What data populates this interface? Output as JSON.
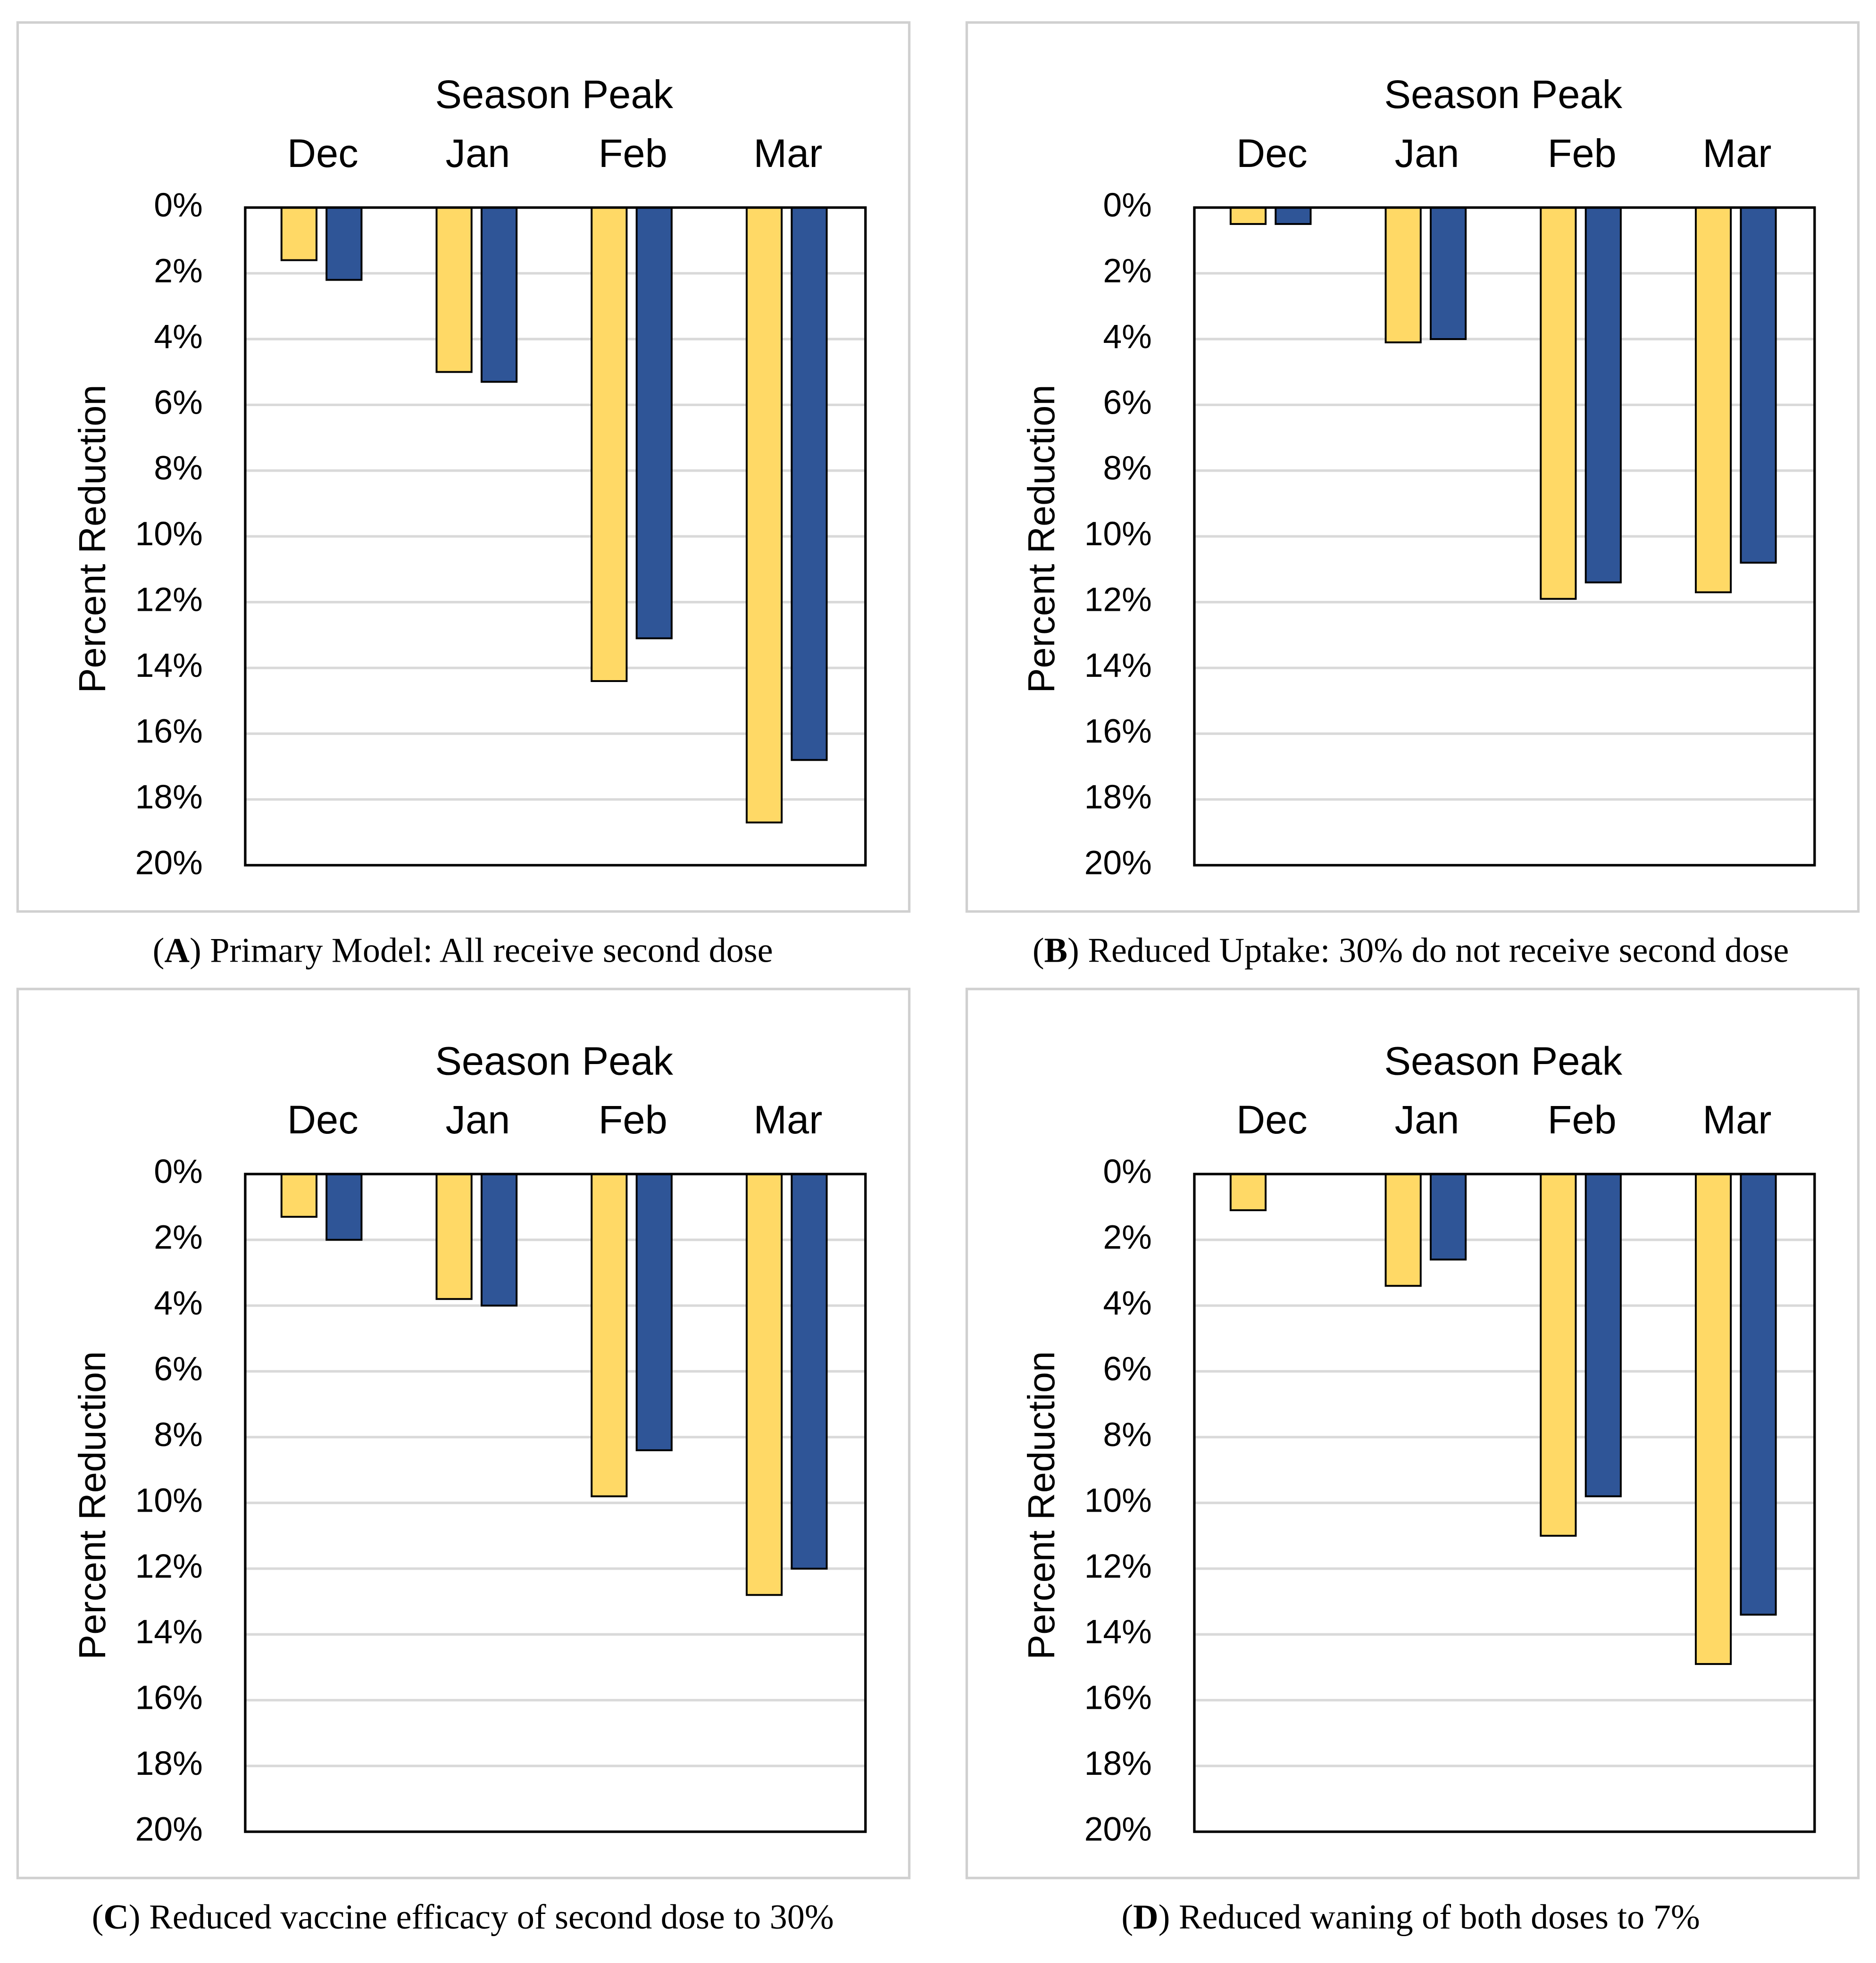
{
  "chart_data": [
    {
      "type": "bar",
      "title": "Season Peak",
      "y_label": "Percent Reduction",
      "caption": [
        "(",
        "A",
        ") Primary Model: All receive second dose"
      ],
      "categories": [
        "Dec",
        "Jan",
        "Feb",
        "Mar"
      ],
      "series": [
        {
          "color": "#ffd966",
          "values": [
            1.6,
            5.0,
            14.4,
            18.7
          ]
        },
        {
          "color": "#2f5597",
          "values": [
            2.2,
            5.3,
            13.1,
            16.8
          ]
        }
      ],
      "ylim": [
        0,
        20
      ],
      "y_inverted": true,
      "grid": true,
      "yticks": [
        {
          "value": 0,
          "label": "0%"
        },
        {
          "value": 2,
          "label": "2%"
        },
        {
          "value": 4,
          "label": "4%"
        },
        {
          "value": 6,
          "label": "6%"
        },
        {
          "value": 8,
          "label": "8%"
        },
        {
          "value": 10,
          "label": "10%"
        },
        {
          "value": 12,
          "label": "12%"
        },
        {
          "value": 14,
          "label": "14%"
        },
        {
          "value": 16,
          "label": "16%"
        },
        {
          "value": 18,
          "label": "18%"
        },
        {
          "value": 20,
          "label": "20%"
        }
      ]
    },
    {
      "type": "bar",
      "title": "Season Peak",
      "y_label": "Percent Reduction",
      "caption": [
        "(",
        "B",
        ") Reduced Uptake: 30% do not receive second dose"
      ],
      "categories": [
        "Dec",
        "Jan",
        "Feb",
        "Mar"
      ],
      "series": [
        {
          "color": "#ffd966",
          "values": [
            0.5,
            4.1,
            11.9,
            11.7
          ]
        },
        {
          "color": "#2f5597",
          "values": [
            0.5,
            4.0,
            11.4,
            10.8
          ]
        }
      ],
      "ylim": [
        0,
        20
      ],
      "y_inverted": true,
      "grid": true,
      "yticks": [
        {
          "value": 0,
          "label": "0%"
        },
        {
          "value": 2,
          "label": "2%"
        },
        {
          "value": 4,
          "label": "4%"
        },
        {
          "value": 6,
          "label": "6%"
        },
        {
          "value": 8,
          "label": "8%"
        },
        {
          "value": 10,
          "label": "10%"
        },
        {
          "value": 12,
          "label": "12%"
        },
        {
          "value": 14,
          "label": "14%"
        },
        {
          "value": 16,
          "label": "16%"
        },
        {
          "value": 18,
          "label": "18%"
        },
        {
          "value": 20,
          "label": "20%"
        }
      ]
    },
    {
      "type": "bar",
      "title": "Season Peak",
      "y_label": "Percent Reduction",
      "caption": [
        "(",
        "C",
        ") Reduced vaccine efficacy of second dose to 30%"
      ],
      "categories": [
        "Dec",
        "Jan",
        "Feb",
        "Mar"
      ],
      "series": [
        {
          "color": "#ffd966",
          "values": [
            1.3,
            3.8,
            9.8,
            12.8
          ]
        },
        {
          "color": "#2f5597",
          "values": [
            2.0,
            4.0,
            8.4,
            12.0
          ]
        }
      ],
      "ylim": [
        0,
        20
      ],
      "y_inverted": true,
      "grid": true,
      "yticks": [
        {
          "value": 0,
          "label": "0%"
        },
        {
          "value": 2,
          "label": "2%"
        },
        {
          "value": 4,
          "label": "4%"
        },
        {
          "value": 6,
          "label": "6%"
        },
        {
          "value": 8,
          "label": "8%"
        },
        {
          "value": 10,
          "label": "10%"
        },
        {
          "value": 12,
          "label": "12%"
        },
        {
          "value": 14,
          "label": "14%"
        },
        {
          "value": 16,
          "label": "16%"
        },
        {
          "value": 18,
          "label": "18%"
        },
        {
          "value": 20,
          "label": "20%"
        }
      ]
    },
    {
      "type": "bar",
      "title": "Season Peak",
      "y_label": "Percent Reduction",
      "caption": [
        "(",
        "D",
        ") Reduced waning of both doses to 7%"
      ],
      "categories": [
        "Dec",
        "Jan",
        "Feb",
        "Mar"
      ],
      "series": [
        {
          "color": "#ffd966",
          "values": [
            1.1,
            3.4,
            11.0,
            14.9
          ]
        },
        {
          "color": "#2f5597",
          "values": [
            0,
            2.6,
            9.8,
            13.4
          ]
        }
      ],
      "ylim": [
        0,
        20
      ],
      "y_inverted": true,
      "grid": true,
      "yticks": [
        {
          "value": 0,
          "label": "0%"
        },
        {
          "value": 2,
          "label": "2%"
        },
        {
          "value": 4,
          "label": "4%"
        },
        {
          "value": 6,
          "label": "6%"
        },
        {
          "value": 8,
          "label": "8%"
        },
        {
          "value": 10,
          "label": "10%"
        },
        {
          "value": 12,
          "label": "12%"
        },
        {
          "value": 14,
          "label": "14%"
        },
        {
          "value": 16,
          "label": "16%"
        },
        {
          "value": 18,
          "label": "18%"
        },
        {
          "value": 20,
          "label": "20%"
        }
      ]
    }
  ]
}
